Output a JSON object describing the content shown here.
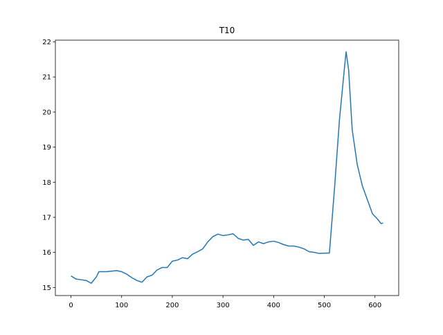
{
  "chart_data": {
    "type": "line",
    "title": "T10",
    "x": [
      0,
      10,
      20,
      30,
      40,
      50,
      55,
      70,
      90,
      100,
      110,
      120,
      130,
      140,
      150,
      160,
      170,
      180,
      190,
      200,
      210,
      220,
      230,
      240,
      250,
      260,
      270,
      280,
      290,
      300,
      310,
      320,
      330,
      340,
      350,
      360,
      370,
      380,
      390,
      400,
      410,
      420,
      430,
      440,
      450,
      460,
      470,
      480,
      490,
      505,
      510,
      520,
      530,
      540,
      543,
      548,
      555,
      565,
      575,
      585,
      595,
      605,
      612,
      616
    ],
    "series": [
      {
        "color": "#1f77b4",
        "values": [
          15.33,
          15.24,
          15.22,
          15.2,
          15.12,
          15.3,
          15.45,
          15.45,
          15.48,
          15.45,
          15.38,
          15.28,
          15.2,
          15.15,
          15.3,
          15.35,
          15.5,
          15.57,
          15.57,
          15.75,
          15.78,
          15.85,
          15.82,
          15.95,
          16.02,
          16.1,
          16.3,
          16.45,
          16.52,
          16.48,
          16.5,
          16.53,
          16.4,
          16.35,
          16.37,
          16.2,
          16.3,
          16.25,
          16.3,
          16.32,
          16.28,
          16.22,
          16.18,
          16.18,
          16.15,
          16.1,
          16.02,
          16.0,
          15.97,
          15.98,
          15.98,
          17.8,
          19.8,
          21.3,
          21.72,
          21.2,
          19.5,
          18.5,
          17.9,
          17.5,
          17.1,
          16.95,
          16.82,
          16.84
        ]
      }
    ],
    "xlim": [
      -30.8,
      646.8
    ],
    "xticks": [
      0,
      100,
      200,
      300,
      400,
      500,
      600
    ],
    "ylim": [
      14.77,
      22.05
    ],
    "yticks": [
      15,
      16,
      17,
      18,
      19,
      20,
      21,
      22
    ]
  }
}
